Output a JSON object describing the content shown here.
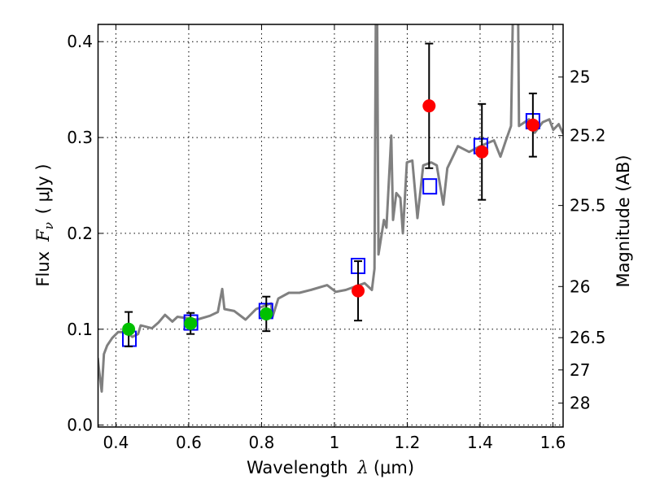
{
  "chart_data": {
    "type": "scatter",
    "title": "",
    "xlabel_parts": [
      "Wavelength",
      "λ",
      "(μm)"
    ],
    "ylabel_parts": [
      "Flux",
      "F",
      "ν",
      "( μJy )"
    ],
    "ylabel_right": "Magnitude (AB)",
    "xlim": [
      0.351,
      1.628
    ],
    "ylim": [
      -0.002,
      0.418
    ],
    "grid": true,
    "xticks": [
      0.4,
      0.6,
      0.8,
      1.0,
      1.2,
      1.4,
      1.6
    ],
    "xtick_labels": [
      "0.4",
      "0.6",
      "0.8",
      "1",
      "1.2",
      "1.4",
      "1.6"
    ],
    "yticks": [
      0.0,
      0.1,
      0.2,
      0.3,
      0.4
    ],
    "ytick_labels": [
      "0.0",
      "0.1",
      "0.2",
      "0.3",
      "0.4"
    ],
    "right_axis": {
      "quantity": "AB magnitude = 23.9 - 2.5 log10(flux in μJy)",
      "ticks": [
        25,
        25.2,
        25.5,
        26,
        26.5,
        27,
        28
      ],
      "tick_labels": [
        "25",
        "25.2",
        "25.5",
        "26",
        "26.5",
        "27",
        "28"
      ]
    },
    "colors": {
      "spectrum": "#808080",
      "green": "#00c000",
      "red": "#ff0000",
      "model": "#0000ff",
      "error": "#000000"
    },
    "series": [
      {
        "name": "spectrum",
        "kind": "line",
        "x": [
          0.35,
          0.354,
          0.361,
          0.367,
          0.376,
          0.39,
          0.406,
          0.428,
          0.445,
          0.461,
          0.468,
          0.499,
          0.517,
          0.535,
          0.555,
          0.569,
          0.622,
          0.658,
          0.68,
          0.692,
          0.698,
          0.725,
          0.756,
          0.785,
          0.826,
          0.83,
          0.846,
          0.875,
          0.904,
          0.935,
          0.98,
          1.004,
          1.031,
          1.083,
          1.103,
          1.11,
          1.114,
          1.117,
          1.121,
          1.136,
          1.143,
          1.156,
          1.161,
          1.17,
          1.181,
          1.188,
          1.199,
          1.214,
          1.228,
          1.244,
          1.266,
          1.281,
          1.299,
          1.31,
          1.339,
          1.37,
          1.4,
          1.438,
          1.456,
          1.471,
          1.485,
          1.491,
          1.504,
          1.507,
          1.534,
          1.55,
          1.572,
          1.59,
          1.601,
          1.616,
          1.628
        ],
        "y": [
          0.07,
          0.057,
          0.035,
          0.074,
          0.083,
          0.091,
          0.097,
          0.097,
          0.092,
          0.095,
          0.104,
          0.101,
          0.107,
          0.115,
          0.108,
          0.113,
          0.11,
          0.114,
          0.118,
          0.142,
          0.121,
          0.119,
          0.11,
          0.121,
          0.127,
          0.113,
          0.132,
          0.138,
          0.138,
          0.141,
          0.146,
          0.139,
          0.141,
          0.148,
          0.141,
          0.163,
          0.45,
          0.45,
          0.178,
          0.214,
          0.206,
          0.302,
          0.214,
          0.242,
          0.237,
          0.2,
          0.274,
          0.276,
          0.216,
          0.271,
          0.274,
          0.271,
          0.23,
          0.268,
          0.291,
          0.285,
          0.291,
          0.297,
          0.28,
          0.297,
          0.312,
          0.45,
          0.45,
          0.312,
          0.319,
          0.305,
          0.316,
          0.319,
          0.308,
          0.314,
          0.304
        ]
      },
      {
        "name": "photometry-optical",
        "kind": "points",
        "color": "#00c000",
        "x": [
          0.435,
          0.605,
          0.813
        ],
        "y": [
          0.1,
          0.106,
          0.116
        ],
        "yerr": [
          0.018,
          0.011,
          0.018
        ]
      },
      {
        "name": "photometry-nir",
        "kind": "points",
        "color": "#ff0000",
        "x": [
          1.065,
          1.26,
          1.405,
          1.545
        ],
        "y": [
          0.14,
          0.333,
          0.285,
          0.313
        ],
        "yerr": [
          0.031,
          0.065,
          0.05,
          0.033
        ]
      },
      {
        "name": "model-synthetic",
        "kind": "squares",
        "color": "#0000ff",
        "x": [
          0.437,
          0.606,
          0.812,
          1.065,
          1.262,
          1.402,
          1.545
        ],
        "y": [
          0.09,
          0.107,
          0.119,
          0.166,
          0.249,
          0.291,
          0.317
        ]
      }
    ]
  }
}
